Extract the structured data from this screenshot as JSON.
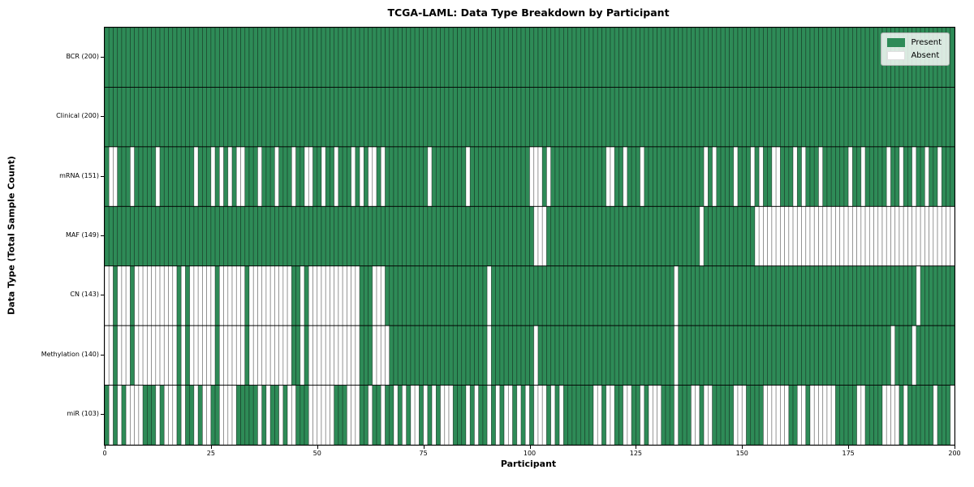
{
  "title": "TCGA-LAML: Data Type Breakdown by Participant",
  "axes": {
    "x_label": "Participant",
    "y_label": "Data Type (Total Sample Count)",
    "x_ticks": [
      "0",
      "25",
      "50",
      "75",
      "100",
      "125",
      "150",
      "175",
      "200"
    ]
  },
  "legend": {
    "present_label": "Present",
    "absent_label": "Absent"
  },
  "chart_data": {
    "type": "heatmap",
    "title": "TCGA-LAML: Data Type Breakdown by Participant",
    "xlabel": "Participant",
    "ylabel": "Data Type (Total Sample Count)",
    "x_range": [
      0,
      200
    ],
    "n_participants": 200,
    "present_color": "#2e8b57",
    "absent_color": "#ffffff",
    "cell_edge_color": "rgba(0,0,0,0.45)",
    "row_separator_color": "#000000",
    "legend_position": "upper right",
    "grid": false,
    "rows": [
      {
        "label": "BCR (200)",
        "name": "BCR",
        "present_count": 200,
        "absent_count": 0,
        "absent_indices": []
      },
      {
        "label": "Clinical (200)",
        "name": "Clinical",
        "present_count": 200,
        "absent_count": 0,
        "absent_indices": []
      },
      {
        "label": "mRNA (151)",
        "name": "mRNA",
        "present_count": 151,
        "absent_count": 49,
        "absent_indices": [
          1,
          2,
          6,
          12,
          21,
          25,
          27,
          29,
          31,
          32,
          36,
          40,
          44,
          47,
          48,
          51,
          54,
          58,
          60,
          62,
          63,
          65,
          76,
          85,
          100,
          101,
          102,
          104,
          118,
          119,
          122,
          126,
          141,
          143,
          148,
          152,
          154,
          157,
          158,
          162,
          164,
          168,
          175,
          178,
          184,
          187,
          190,
          193,
          196
        ]
      },
      {
        "label": "MAF (149)",
        "name": "MAF",
        "present_count": 149,
        "absent_count": 51,
        "absent_indices": [
          101,
          102,
          103,
          140,
          153,
          154,
          155,
          156,
          157,
          158,
          159,
          160,
          161,
          162,
          163,
          164,
          165,
          166,
          167,
          168,
          169,
          170,
          171,
          172,
          173,
          174,
          175,
          176,
          177,
          178,
          179,
          180,
          181,
          182,
          183,
          184,
          185,
          186,
          187,
          188,
          189,
          190,
          191,
          192,
          193,
          194,
          195,
          196,
          197,
          198,
          199
        ]
      },
      {
        "label": "CN (143)",
        "name": "CN",
        "present_count": 143,
        "absent_count": 57,
        "absent_indices": [
          0,
          1,
          3,
          4,
          5,
          7,
          8,
          9,
          10,
          11,
          12,
          13,
          14,
          15,
          16,
          18,
          20,
          21,
          22,
          23,
          24,
          25,
          27,
          28,
          29,
          30,
          31,
          32,
          34,
          35,
          36,
          37,
          38,
          39,
          40,
          41,
          42,
          43,
          46,
          48,
          49,
          50,
          51,
          52,
          53,
          54,
          55,
          56,
          57,
          58,
          59,
          63,
          64,
          65,
          90,
          134,
          191
        ]
      },
      {
        "label": "Methylation (140)",
        "name": "Methylation",
        "present_count": 140,
        "absent_count": 60,
        "absent_indices": [
          0,
          1,
          3,
          4,
          5,
          7,
          8,
          9,
          10,
          11,
          12,
          13,
          14,
          15,
          16,
          18,
          20,
          21,
          22,
          23,
          24,
          25,
          27,
          28,
          29,
          30,
          31,
          32,
          34,
          35,
          36,
          37,
          38,
          39,
          40,
          41,
          42,
          43,
          46,
          48,
          49,
          50,
          51,
          52,
          53,
          54,
          55,
          56,
          57,
          58,
          59,
          63,
          64,
          65,
          66,
          90,
          101,
          134,
          185,
          190
        ]
      },
      {
        "label": "miR (103)",
        "name": "miR",
        "present_count": 103,
        "absent_count": 97,
        "absent_indices": [
          1,
          3,
          5,
          6,
          7,
          8,
          12,
          14,
          15,
          16,
          18,
          21,
          23,
          24,
          27,
          28,
          29,
          30,
          36,
          38,
          41,
          43,
          44,
          48,
          49,
          50,
          51,
          52,
          53,
          57,
          58,
          59,
          62,
          65,
          68,
          70,
          72,
          73,
          75,
          77,
          79,
          80,
          81,
          85,
          87,
          90,
          92,
          94,
          95,
          97,
          99,
          101,
          102,
          103,
          105,
          107,
          115,
          116,
          118,
          119,
          122,
          123,
          126,
          128,
          129,
          130,
          134,
          138,
          139,
          141,
          142,
          148,
          149,
          150,
          155,
          156,
          157,
          158,
          159,
          160,
          163,
          164,
          166,
          167,
          168,
          169,
          170,
          171,
          177,
          178,
          183,
          184,
          185,
          186,
          188,
          195,
          199
        ]
      }
    ]
  }
}
